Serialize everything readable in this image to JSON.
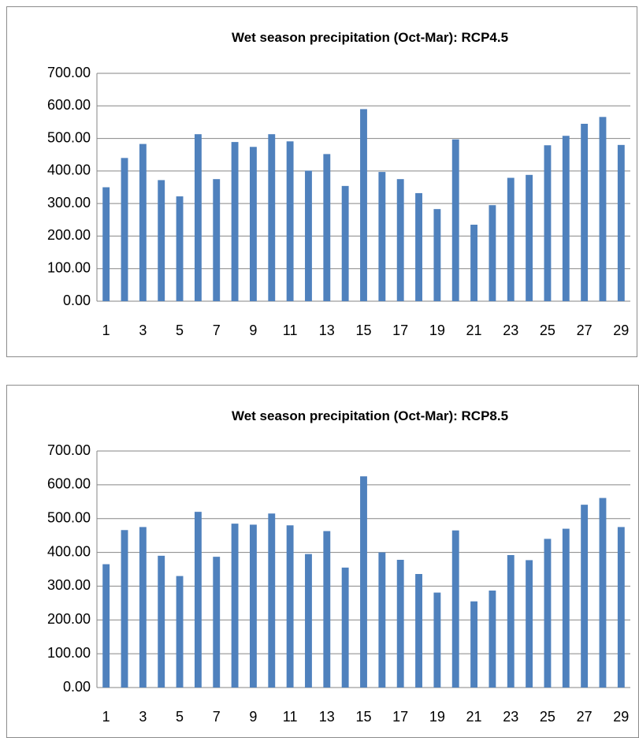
{
  "chart_data": [
    {
      "type": "bar",
      "title": "Wet season precipitation (Oct-Mar): RCP4.5",
      "categories": [
        1,
        null,
        3,
        null,
        5,
        null,
        7,
        null,
        9,
        null,
        11,
        null,
        13,
        null,
        15,
        null,
        17,
        null,
        19,
        null,
        21,
        null,
        23,
        null,
        25,
        null,
        27,
        null,
        29
      ],
      "values": [
        350,
        440,
        483,
        372,
        322,
        513,
        375,
        489,
        474,
        513,
        491,
        401,
        452,
        354,
        590,
        397,
        375,
        332,
        283,
        497,
        235,
        295,
        379,
        388,
        479,
        508,
        545,
        566,
        480
      ],
      "color": "#4f81bd",
      "ylim": [
        0,
        700
      ],
      "yticks": [
        {
          "value": 0,
          "label": "0.00"
        },
        {
          "value": 100,
          "label": "100.00"
        },
        {
          "value": 200,
          "label": "200.00"
        },
        {
          "value": 300,
          "label": "300.00"
        },
        {
          "value": 400,
          "label": "400.00"
        },
        {
          "value": 500,
          "label": "500.00"
        },
        {
          "value": 600,
          "label": "600.00"
        },
        {
          "value": 700,
          "label": "700.00"
        }
      ],
      "grid": true
    },
    {
      "type": "bar",
      "title": "Wet season precipitation (Oct-Mar): RCP8.5",
      "categories": [
        1,
        null,
        3,
        null,
        5,
        null,
        7,
        null,
        9,
        null,
        11,
        null,
        13,
        null,
        15,
        null,
        17,
        null,
        19,
        null,
        21,
        null,
        23,
        null,
        25,
        null,
        27,
        null,
        29
      ],
      "values": [
        365,
        466,
        475,
        390,
        330,
        520,
        387,
        485,
        482,
        515,
        480,
        395,
        463,
        355,
        625,
        400,
        378,
        336,
        281,
        465,
        255,
        287,
        392,
        377,
        440,
        470,
        541,
        561,
        475
      ],
      "color": "#4f81bd",
      "ylim": [
        0,
        700
      ],
      "yticks": [
        {
          "value": 0,
          "label": "0.00"
        },
        {
          "value": 100,
          "label": "100.00"
        },
        {
          "value": 200,
          "label": "200.00"
        },
        {
          "value": 300,
          "label": "300.00"
        },
        {
          "value": 400,
          "label": "400.00"
        },
        {
          "value": 500,
          "label": "500.00"
        },
        {
          "value": 600,
          "label": "600.00"
        },
        {
          "value": 700,
          "label": "700.00"
        }
      ],
      "grid": true
    }
  ]
}
